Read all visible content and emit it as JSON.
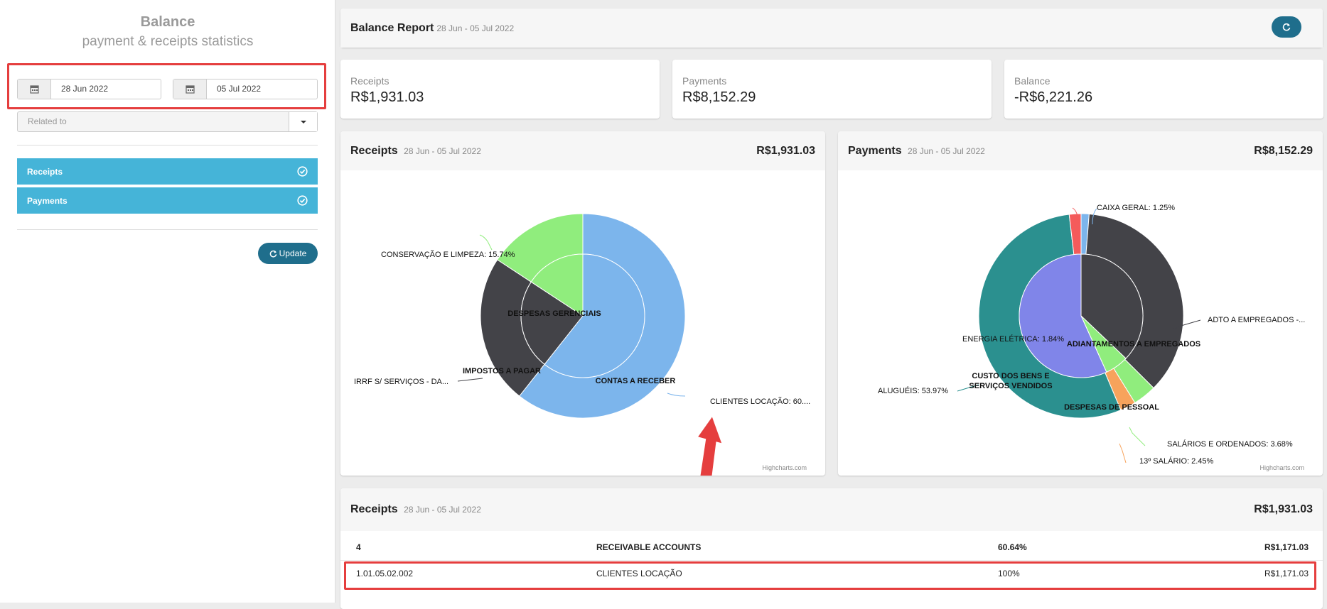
{
  "sidebar": {
    "title": "Balance",
    "subtitle": "payment & receipts statistics",
    "date_from": "28 Jun 2022",
    "date_to": "05 Jul 2022",
    "related_placeholder": "Related to",
    "sections": [
      {
        "label": "Receipts"
      },
      {
        "label": "Payments"
      }
    ],
    "update_label": "Update"
  },
  "report": {
    "title": "Balance Report",
    "date_range": "28 Jun - 05 Jul 2022"
  },
  "stats": [
    {
      "label": "Receipts",
      "value": "R$1,931.03"
    },
    {
      "label": "Payments",
      "value": "R$8,152.29"
    },
    {
      "label": "Balance",
      "value": "-R$6,221.26"
    }
  ],
  "receipts_chart": {
    "title": "Receipts",
    "date_range": "28 Jun - 05 Jul 2022",
    "total": "R$1,931.03",
    "credit": "Highcharts.com",
    "inner_labels": [
      "DESPESAS GERENCIAIS",
      "IMPOSTOS A PAGAR",
      "CONTAS A RECEBER"
    ],
    "outer_labels": [
      "CONSERVAÇÃO E LIMPEZA: 15.74%",
      "IRRF S/ SERVIÇOS - DA...",
      "CLIENTES LOCAÇÃO: 60...."
    ]
  },
  "payments_chart": {
    "title": "Payments",
    "date_range": "28 Jun - 05 Jul 2022",
    "total": "R$8,152.29",
    "credit": "Highcharts.com",
    "inner_labels": [
      "ADIANTAMENTOS A EMPREGADOS",
      "CUSTO DOS BENS E",
      "SERVIÇOS VENDIDOS",
      "DESPESAS DE PESSOAL"
    ],
    "outer_labels": [
      "ENERGIA ELÉTRICA: 1.84%",
      "CAIXA GERAL: 1.25%",
      "ADTO A EMPREGADOS -...",
      "ALUGUÉIS: 53.97%",
      "SALÁRIOS E ORDENADOS: 3.68%",
      "13º SALÁRIO: 2.45%"
    ]
  },
  "chart_data": [
    {
      "type": "pie",
      "title": "Receipts",
      "inner": [
        {
          "name": "CONTAS A RECEBER",
          "value": 60.64,
          "color": "#7cb5ec"
        },
        {
          "name": "IMPOSTOS A PAGAR",
          "value": 23.62,
          "color": "#434348"
        },
        {
          "name": "DESPESAS GERENCIAIS",
          "value": 15.74,
          "color": "#90ed7d"
        }
      ],
      "outer": [
        {
          "name": "CLIENTES LOCAÇÃO",
          "value": 60.64,
          "color": "#7cb5ec"
        },
        {
          "name": "IRRF S/ SERVIÇOS - DA...",
          "value": 23.62,
          "color": "#434348"
        },
        {
          "name": "CONSERVAÇÃO E LIMPEZA",
          "value": 15.74,
          "color": "#90ed7d"
        }
      ]
    },
    {
      "type": "pie",
      "title": "Payments",
      "inner": [
        {
          "name": "ADIANTAMENTOS A EMPREGADOS",
          "value": 37.11,
          "color": "#434348"
        },
        {
          "name": "DESPESAS DE PESSOAL",
          "value": 6.13,
          "color": "#90ed7d"
        },
        {
          "name": "CUSTO DOS BENS E SERVIÇOS VENDIDOS",
          "value": 56.76,
          "color": "#8085e9"
        }
      ],
      "outer": [
        {
          "name": "CAIXA GERAL",
          "value": 1.25,
          "color": "#7cb5ec"
        },
        {
          "name": "ADTO A EMPREGADOS -...",
          "value": 35.86,
          "color": "#434348"
        },
        {
          "name": "SALÁRIOS E ORDENADOS",
          "value": 3.68,
          "color": "#90ed7d"
        },
        {
          "name": "13º SALÁRIO",
          "value": 2.45,
          "color": "#f7a35c"
        },
        {
          "name": "ALUGUÉIS",
          "value": 53.97,
          "color": "#2b908f"
        },
        {
          "name": "ENERGIA ELÉTRICA",
          "value": 1.84,
          "color": "#f45b5b"
        }
      ]
    }
  ],
  "table": {
    "title": "Receipts",
    "date_range": "28 Jun - 05 Jul 2022",
    "total": "R$1,931.03",
    "rows": [
      {
        "code": "4",
        "name": "RECEIVABLE ACCOUNTS",
        "percent": "60.64%",
        "amount": "R$1,171.03"
      },
      {
        "code": "1.01.05.02.002",
        "name": "CLIENTES LOCAÇÃO",
        "percent": "100%",
        "amount": "R$1,171.03"
      }
    ]
  }
}
